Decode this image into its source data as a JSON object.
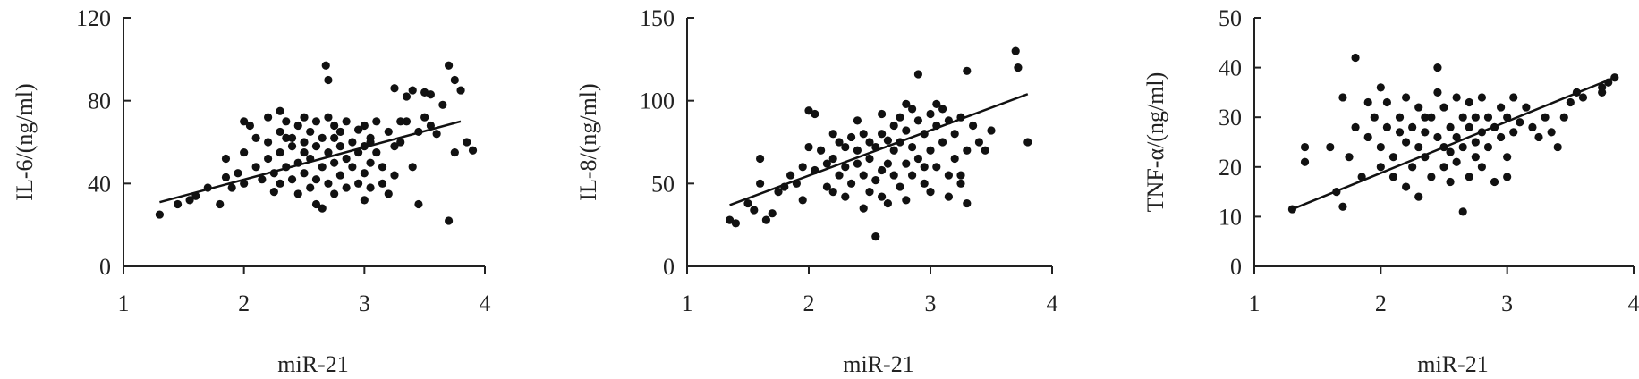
{
  "chart_data": [
    {
      "type": "scatter",
      "xlabel": "miR-21",
      "ylabel": "IL-6/(ng/ml)",
      "xlim": [
        1,
        4
      ],
      "ylim": [
        0,
        120
      ],
      "xticks": [
        "1",
        "2",
        "3",
        "4"
      ],
      "yticks": [
        "0",
        "40",
        "80",
        "120"
      ],
      "trendline": {
        "x": [
          1.3,
          3.8
        ],
        "y": [
          31,
          70
        ]
      },
      "points": [
        [
          1.3,
          25
        ],
        [
          1.45,
          30
        ],
        [
          1.55,
          32
        ],
        [
          1.6,
          34
        ],
        [
          1.7,
          38
        ],
        [
          1.8,
          30
        ],
        [
          1.85,
          52
        ],
        [
          1.85,
          43
        ],
        [
          1.9,
          38
        ],
        [
          1.95,
          45
        ],
        [
          2.0,
          70
        ],
        [
          2.0,
          55
        ],
        [
          2.0,
          40
        ],
        [
          2.05,
          68
        ],
        [
          2.1,
          62
        ],
        [
          2.1,
          48
        ],
        [
          2.15,
          42
        ],
        [
          2.2,
          72
        ],
        [
          2.2,
          60
        ],
        [
          2.2,
          52
        ],
        [
          2.25,
          45
        ],
        [
          2.25,
          36
        ],
        [
          2.3,
          75
        ],
        [
          2.3,
          65
        ],
        [
          2.3,
          55
        ],
        [
          2.3,
          40
        ],
        [
          2.35,
          70
        ],
        [
          2.35,
          48
        ],
        [
          2.4,
          62
        ],
        [
          2.4,
          58
        ],
        [
          2.4,
          42
        ],
        [
          2.45,
          68
        ],
        [
          2.45,
          50
        ],
        [
          2.45,
          35
        ],
        [
          2.5,
          72
        ],
        [
          2.5,
          60
        ],
        [
          2.5,
          45
        ],
        [
          2.55,
          65
        ],
        [
          2.55,
          52
        ],
        [
          2.55,
          38
        ],
        [
          2.6,
          70
        ],
        [
          2.6,
          58
        ],
        [
          2.6,
          42
        ],
        [
          2.6,
          30
        ],
        [
          2.65,
          62
        ],
        [
          2.65,
          48
        ],
        [
          2.65,
          28
        ],
        [
          2.68,
          97
        ],
        [
          2.7,
          90
        ],
        [
          2.7,
          72
        ],
        [
          2.7,
          55
        ],
        [
          2.7,
          40
        ],
        [
          2.75,
          68
        ],
        [
          2.75,
          50
        ],
        [
          2.75,
          35
        ],
        [
          2.8,
          65
        ],
        [
          2.8,
          58
        ],
        [
          2.8,
          44
        ],
        [
          2.85,
          70
        ],
        [
          2.85,
          52
        ],
        [
          2.85,
          38
        ],
        [
          2.9,
          60
        ],
        [
          2.9,
          48
        ],
        [
          2.95,
          66
        ],
        [
          2.95,
          55
        ],
        [
          2.95,
          40
        ],
        [
          3.0,
          68
        ],
        [
          3.0,
          58
        ],
        [
          3.0,
          45
        ],
        [
          3.0,
          32
        ],
        [
          3.05,
          62
        ],
        [
          3.05,
          50
        ],
        [
          3.05,
          38
        ],
        [
          3.1,
          70
        ],
        [
          3.1,
          55
        ],
        [
          3.15,
          48
        ],
        [
          3.15,
          40
        ],
        [
          3.2,
          65
        ],
        [
          3.2,
          35
        ],
        [
          3.25,
          86
        ],
        [
          3.25,
          58
        ],
        [
          3.25,
          44
        ],
        [
          3.3,
          60
        ],
        [
          3.35,
          82
        ],
        [
          3.35,
          70
        ],
        [
          3.4,
          85
        ],
        [
          3.4,
          48
        ],
        [
          3.45,
          65
        ],
        [
          3.45,
          30
        ],
        [
          3.5,
          72
        ],
        [
          3.5,
          84
        ],
        [
          3.55,
          68
        ],
        [
          3.6,
          64
        ],
        [
          3.65,
          78
        ],
        [
          3.7,
          97
        ],
        [
          3.7,
          22
        ],
        [
          3.75,
          90
        ],
        [
          3.75,
          55
        ],
        [
          3.8,
          85
        ],
        [
          3.85,
          60
        ],
        [
          3.9,
          56
        ],
        [
          3.55,
          83
        ],
        [
          3.3,
          70
        ],
        [
          2.35,
          62
        ],
        [
          2.5,
          55
        ],
        [
          2.75,
          62
        ],
        [
          3.05,
          60
        ]
      ]
    },
    {
      "type": "scatter",
      "xlabel": "miR-21",
      "ylabel": "IL-8/(ng/ml)",
      "xlim": [
        1,
        4
      ],
      "ylim": [
        0,
        150
      ],
      "xticks": [
        "1",
        "2",
        "3",
        "4"
      ],
      "yticks": [
        "0",
        "50",
        "100",
        "150"
      ],
      "trendline": {
        "x": [
          1.35,
          3.8
        ],
        "y": [
          37,
          104
        ]
      },
      "points": [
        [
          1.35,
          28
        ],
        [
          1.4,
          26
        ],
        [
          1.5,
          38
        ],
        [
          1.55,
          34
        ],
        [
          1.6,
          50
        ],
        [
          1.6,
          65
        ],
        [
          1.65,
          28
        ],
        [
          1.7,
          32
        ],
        [
          1.75,
          45
        ],
        [
          1.8,
          48
        ],
        [
          1.85,
          55
        ],
        [
          1.9,
          50
        ],
        [
          1.95,
          60
        ],
        [
          2.0,
          94
        ],
        [
          2.0,
          72
        ],
        [
          2.05,
          92
        ],
        [
          2.05,
          58
        ],
        [
          2.1,
          70
        ],
        [
          2.15,
          62
        ],
        [
          2.15,
          48
        ],
        [
          2.2,
          80
        ],
        [
          2.2,
          65
        ],
        [
          2.25,
          75
        ],
        [
          2.25,
          55
        ],
        [
          2.3,
          72
        ],
        [
          2.3,
          60
        ],
        [
          2.3,
          42
        ],
        [
          2.35,
          78
        ],
        [
          2.35,
          50
        ],
        [
          2.4,
          70
        ],
        [
          2.4,
          62
        ],
        [
          2.45,
          80
        ],
        [
          2.45,
          55
        ],
        [
          2.45,
          35
        ],
        [
          2.5,
          75
        ],
        [
          2.5,
          65
        ],
        [
          2.5,
          45
        ],
        [
          2.55,
          72
        ],
        [
          2.55,
          52
        ],
        [
          2.55,
          18
        ],
        [
          2.6,
          80
        ],
        [
          2.6,
          58
        ],
        [
          2.6,
          42
        ],
        [
          2.65,
          76
        ],
        [
          2.65,
          62
        ],
        [
          2.65,
          38
        ],
        [
          2.7,
          85
        ],
        [
          2.7,
          70
        ],
        [
          2.7,
          55
        ],
        [
          2.75,
          90
        ],
        [
          2.75,
          75
        ],
        [
          2.75,
          48
        ],
        [
          2.8,
          82
        ],
        [
          2.8,
          62
        ],
        [
          2.8,
          40
        ],
        [
          2.85,
          95
        ],
        [
          2.85,
          72
        ],
        [
          2.85,
          55
        ],
        [
          2.9,
          116
        ],
        [
          2.9,
          88
        ],
        [
          2.9,
          65
        ],
        [
          2.95,
          80
        ],
        [
          2.95,
          50
        ],
        [
          3.0,
          92
        ],
        [
          3.0,
          70
        ],
        [
          3.0,
          45
        ],
        [
          3.05,
          85
        ],
        [
          3.05,
          60
        ],
        [
          3.1,
          95
        ],
        [
          3.1,
          75
        ],
        [
          3.15,
          55
        ],
        [
          3.15,
          42
        ],
        [
          3.2,
          80
        ],
        [
          3.2,
          65
        ],
        [
          3.25,
          90
        ],
        [
          3.25,
          50
        ],
        [
          3.3,
          118
        ],
        [
          3.3,
          70
        ],
        [
          3.3,
          38
        ],
        [
          3.35,
          85
        ],
        [
          3.4,
          75
        ],
        [
          3.45,
          70
        ],
        [
          3.5,
          82
        ],
        [
          3.7,
          130
        ],
        [
          3.72,
          120
        ],
        [
          3.8,
          75
        ],
        [
          2.4,
          88
        ],
        [
          2.6,
          92
        ],
        [
          2.8,
          98
        ],
        [
          3.05,
          98
        ],
        [
          3.15,
          88
        ],
        [
          2.2,
          45
        ],
        [
          1.95,
          40
        ],
        [
          3.25,
          55
        ],
        [
          2.95,
          60
        ]
      ]
    },
    {
      "type": "scatter",
      "xlabel": "miR-21",
      "ylabel": "TNF-α/(ng/ml)",
      "xlim": [
        1,
        4
      ],
      "ylim": [
        0,
        50
      ],
      "xticks": [
        "1",
        "2",
        "3",
        "4"
      ],
      "yticks": [
        "0",
        "10",
        "20",
        "30",
        "40",
        "50"
      ],
      "trendline": {
        "x": [
          1.3,
          3.85
        ],
        "y": [
          11.5,
          38
        ]
      },
      "points": [
        [
          1.3,
          11.5
        ],
        [
          1.4,
          21
        ],
        [
          1.4,
          24
        ],
        [
          1.6,
          24
        ],
        [
          1.65,
          15
        ],
        [
          1.7,
          12
        ],
        [
          1.7,
          34
        ],
        [
          1.75,
          22
        ],
        [
          1.8,
          42
        ],
        [
          1.8,
          28
        ],
        [
          1.85,
          18
        ],
        [
          1.9,
          26
        ],
        [
          1.9,
          33
        ],
        [
          1.95,
          30
        ],
        [
          2.0,
          36
        ],
        [
          2.0,
          24
        ],
        [
          2.0,
          20
        ],
        [
          2.05,
          33
        ],
        [
          2.05,
          28
        ],
        [
          2.1,
          22
        ],
        [
          2.1,
          18
        ],
        [
          2.15,
          30
        ],
        [
          2.2,
          34
        ],
        [
          2.2,
          25
        ],
        [
          2.2,
          16
        ],
        [
          2.25,
          28
        ],
        [
          2.25,
          20
        ],
        [
          2.3,
          32
        ],
        [
          2.3,
          24
        ],
        [
          2.3,
          14
        ],
        [
          2.35,
          27
        ],
        [
          2.35,
          22
        ],
        [
          2.4,
          30
        ],
        [
          2.4,
          18
        ],
        [
          2.45,
          40
        ],
        [
          2.45,
          35
        ],
        [
          2.45,
          26
        ],
        [
          2.5,
          32
        ],
        [
          2.5,
          24
        ],
        [
          2.5,
          20
        ],
        [
          2.55,
          28
        ],
        [
          2.55,
          17
        ],
        [
          2.6,
          34
        ],
        [
          2.6,
          26
        ],
        [
          2.6,
          21
        ],
        [
          2.65,
          30
        ],
        [
          2.65,
          24
        ],
        [
          2.65,
          11
        ],
        [
          2.7,
          33
        ],
        [
          2.7,
          28
        ],
        [
          2.7,
          18
        ],
        [
          2.75,
          30
        ],
        [
          2.75,
          25
        ],
        [
          2.8,
          34
        ],
        [
          2.8,
          27
        ],
        [
          2.8,
          20
        ],
        [
          2.85,
          30
        ],
        [
          2.85,
          24
        ],
        [
          2.9,
          28
        ],
        [
          2.9,
          17
        ],
        [
          2.95,
          32
        ],
        [
          2.95,
          26
        ],
        [
          3.0,
          30
        ],
        [
          3.0,
          22
        ],
        [
          3.05,
          34
        ],
        [
          3.05,
          27
        ],
        [
          3.1,
          29
        ],
        [
          3.15,
          32
        ],
        [
          3.2,
          28
        ],
        [
          3.25,
          26
        ],
        [
          3.3,
          30
        ],
        [
          3.35,
          27
        ],
        [
          3.4,
          24
        ],
        [
          3.45,
          30
        ],
        [
          3.5,
          33
        ],
        [
          3.55,
          35
        ],
        [
          3.6,
          34
        ],
        [
          3.75,
          35
        ],
        [
          3.8,
          37
        ],
        [
          3.85,
          38
        ],
        [
          3.75,
          36
        ],
        [
          2.35,
          30
        ],
        [
          2.55,
          23
        ],
        [
          2.75,
          22
        ],
        [
          2.15,
          27
        ],
        [
          3.0,
          18
        ]
      ]
    }
  ]
}
